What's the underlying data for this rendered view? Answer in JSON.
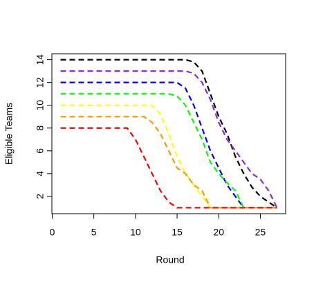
{
  "chart_data": {
    "type": "line",
    "x_label": "Round",
    "y_label": "Eligible Teams",
    "x": [
      1,
      2,
      3,
      4,
      5,
      6,
      7,
      8,
      9,
      10,
      11,
      12,
      13,
      14,
      15,
      16,
      17,
      18,
      19,
      20,
      21,
      22,
      23,
      24,
      25,
      26,
      27
    ],
    "series": [
      {
        "color": "#000000",
        "values": [
          14,
          14,
          14,
          14,
          14,
          14,
          14,
          14,
          14,
          14,
          14,
          14,
          14,
          14,
          14,
          14,
          13.8,
          13,
          11,
          9,
          7.5,
          5.5,
          4,
          2.8,
          2,
          1.5,
          1
        ]
      },
      {
        "color": "#8a2be2",
        "values": [
          13,
          13,
          13,
          13,
          13,
          13,
          13,
          13,
          13,
          13,
          13,
          13,
          13,
          13,
          13,
          13,
          12.8,
          12,
          10.5,
          8.5,
          7,
          6,
          5,
          4,
          3.5,
          2.5,
          1
        ]
      },
      {
        "color": "#0000ff",
        "values": [
          12,
          12,
          12,
          12,
          12,
          12,
          12,
          12,
          12,
          12,
          12,
          12,
          12,
          12,
          12,
          11.5,
          10,
          8,
          6,
          4.5,
          3,
          2,
          1,
          1,
          1,
          1,
          1
        ]
      },
      {
        "color": "#00ff00",
        "values": [
          11,
          11,
          11,
          11,
          11,
          11,
          11,
          11,
          11,
          11,
          11,
          11,
          11,
          11,
          10.8,
          10,
          8.5,
          7,
          5,
          4,
          3.2,
          2.5,
          1,
          1,
          1,
          1,
          1
        ]
      },
      {
        "color": "#ffff00",
        "values": [
          10,
          10,
          10,
          10,
          10,
          10,
          10,
          10,
          10,
          10,
          10,
          10,
          9.2,
          7.5,
          5.5,
          4,
          3,
          2,
          1,
          1,
          1,
          1,
          1,
          1,
          1,
          1,
          1
        ]
      },
      {
        "color": "#ff9900",
        "values": [
          9,
          9,
          9,
          9,
          9,
          9,
          9,
          9,
          9,
          9,
          9,
          8.5,
          7.5,
          6,
          4.5,
          4,
          3,
          2.5,
          1,
          1,
          1,
          1,
          1,
          1,
          1,
          1,
          1
        ]
      },
      {
        "color": "#ff0000",
        "values": [
          8,
          8,
          8,
          8,
          8,
          8,
          8,
          8,
          8,
          7,
          5.5,
          4,
          2.5,
          1.5,
          1,
          1,
          1,
          1,
          1,
          1,
          1,
          1,
          1,
          1,
          1,
          1,
          1
        ]
      }
    ],
    "xlim": [
      -0.04,
      28.04
    ],
    "xticks": [
      0,
      5,
      10,
      15,
      20,
      25
    ],
    "ylim": [
      0.48,
      14.52
    ],
    "yticks": [
      2,
      4,
      6,
      8,
      10,
      12,
      14
    ],
    "line_style": "dashed"
  }
}
